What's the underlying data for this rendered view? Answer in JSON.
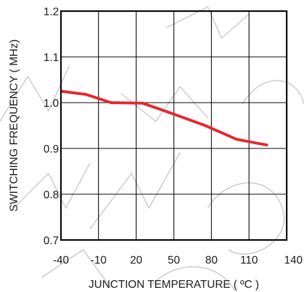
{
  "chart_data": {
    "type": "line",
    "title": "",
    "xlabel": "JUNCTION TEMPERATURE ( ºC )",
    "ylabel": "SWITCHING FREQUENCY ( MHz)",
    "xlim": [
      -40,
      140
    ],
    "ylim": [
      0.7,
      1.2
    ],
    "x_ticks": [
      -40,
      -10,
      20,
      50,
      80,
      110,
      140
    ],
    "x_tick_labels": [
      "-40",
      "-10",
      "20",
      "50",
      "80",
      "110",
      "140"
    ],
    "y_ticks": [
      0.7,
      0.8,
      0.9,
      1.0,
      1.1,
      1.2
    ],
    "y_tick_labels": [
      "0.7",
      "0.8",
      "0.9",
      "1.0",
      "1.1",
      "1.2"
    ],
    "grid": true,
    "series": [
      {
        "color": "#e8262b",
        "x": [
          -40,
          -20,
          0,
          25,
          50,
          75,
          100,
          125
        ],
        "y": [
          1.025,
          1.018,
          1.0,
          0.999,
          0.975,
          0.95,
          0.92,
          0.907
        ]
      }
    ]
  },
  "watermark": {
    "text": "NORMAL USE DISCLOSE",
    "color": "#9a9a9a"
  }
}
